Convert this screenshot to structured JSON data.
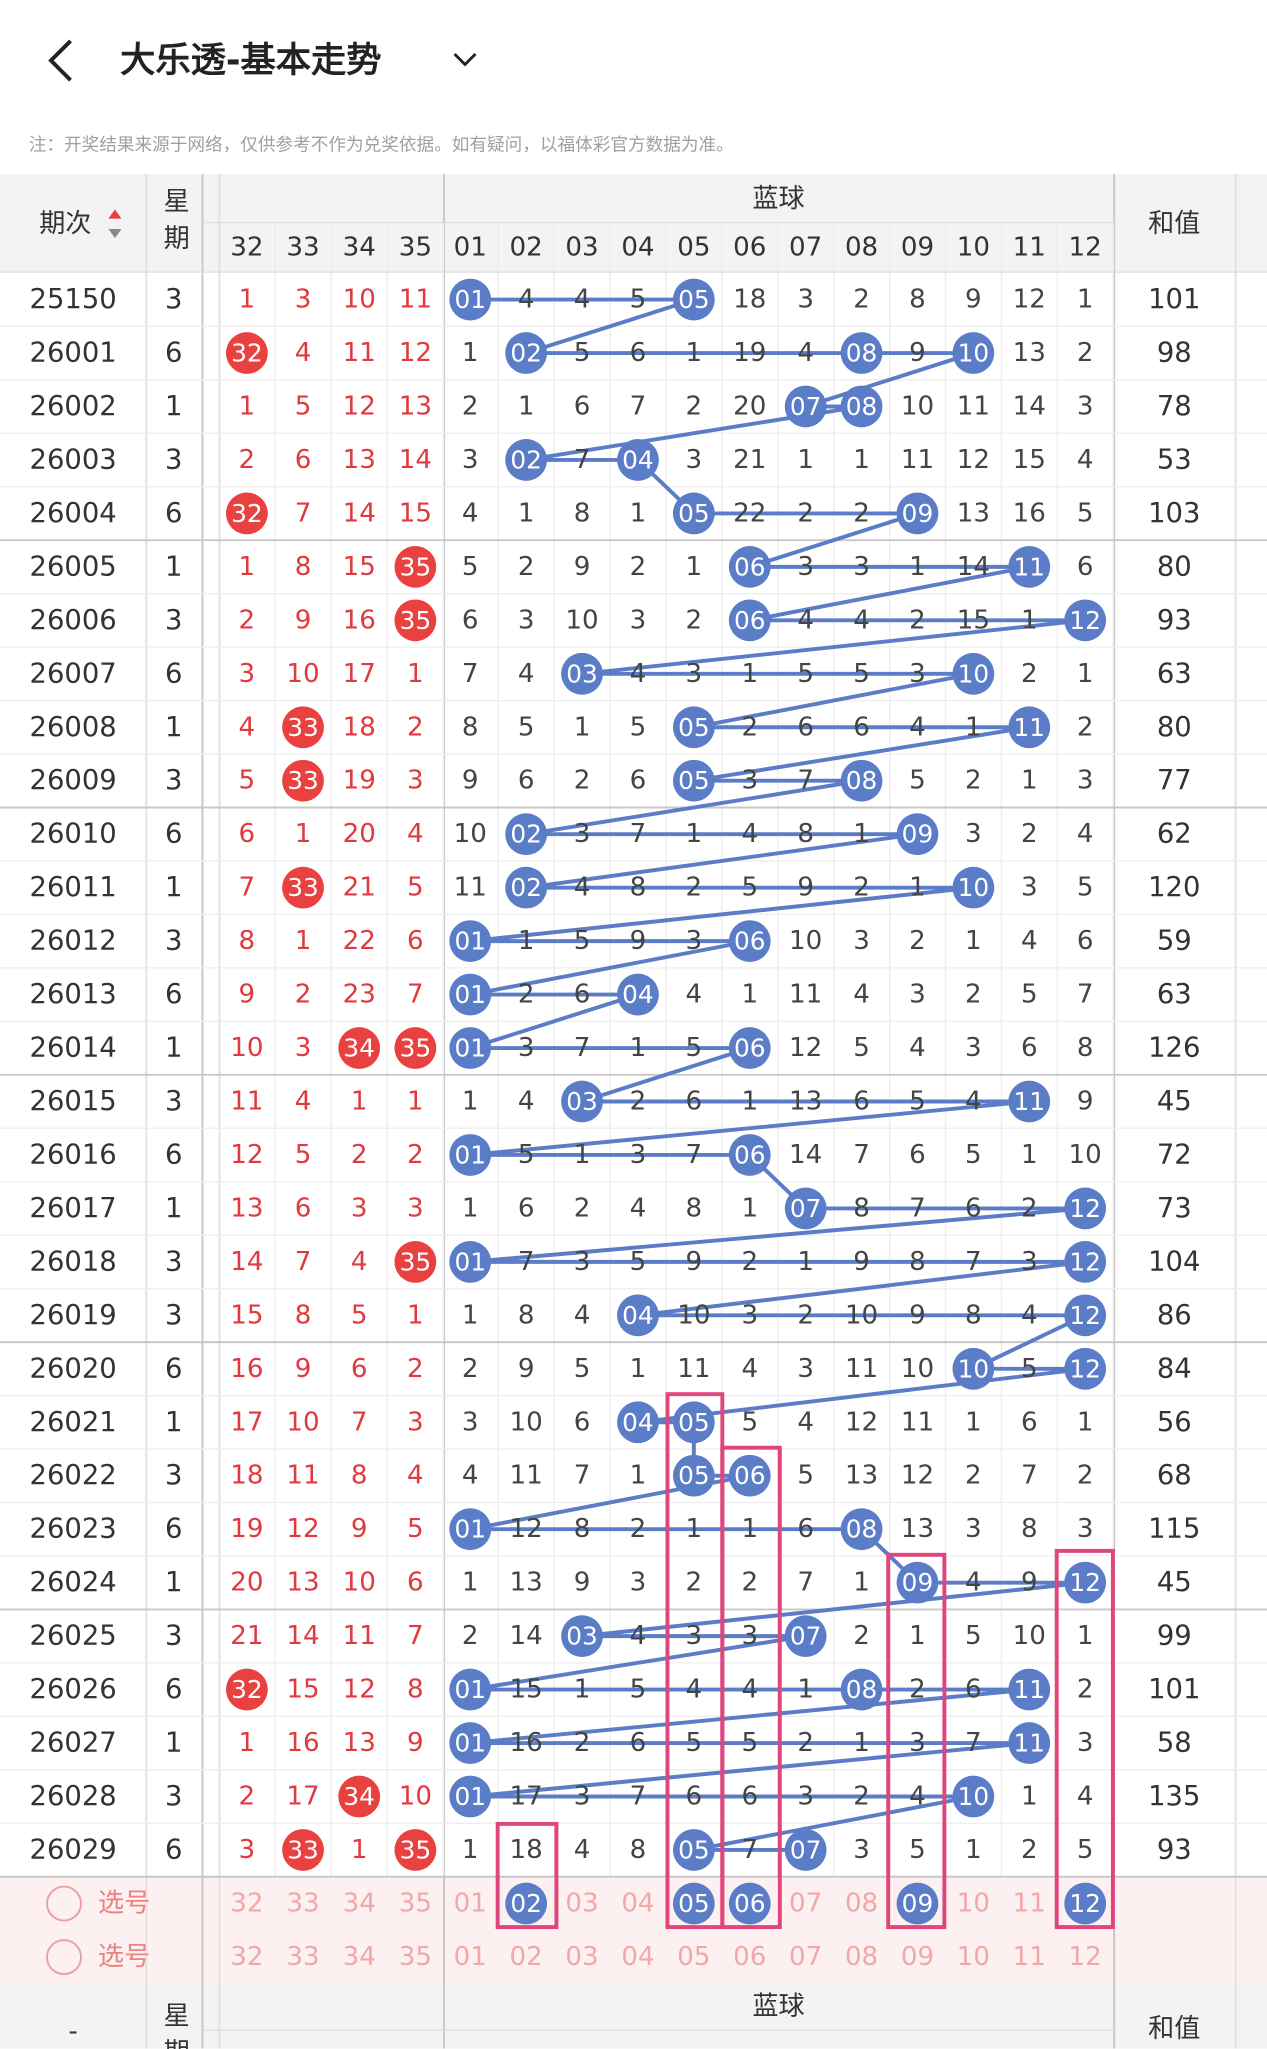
{
  "header": {
    "title": "大乐透-基本走势"
  },
  "notice": "注：开奖结果来源于网络，仅供参考不作为兑奖依据。如有疑问，以福体彩官方数据为准。",
  "table": {
    "col_period": "期次",
    "col_week": "星期",
    "blue_group": "蓝球",
    "col_sum": "和值",
    "red_columns": [
      "32",
      "33",
      "34",
      "35"
    ],
    "blue_columns": [
      "01",
      "02",
      "03",
      "04",
      "05",
      "06",
      "07",
      "08",
      "09",
      "10",
      "11",
      "12"
    ],
    "rows": [
      {
        "period": "25150",
        "week": "3",
        "red": [
          "1",
          "3",
          "10",
          "11"
        ],
        "blue": [
          "01",
          "4",
          "4",
          "5",
          "05",
          "18",
          "3",
          "2",
          "8",
          "9",
          "12",
          "1"
        ],
        "sum": "101"
      },
      {
        "period": "26001",
        "week": "6",
        "red": [
          "32",
          "4",
          "11",
          "12"
        ],
        "blue": [
          "1",
          "02",
          "5",
          "6",
          "1",
          "19",
          "4",
          "08",
          "9",
          "10",
          "13",
          "2"
        ],
        "sum": "98"
      },
      {
        "period": "26002",
        "week": "1",
        "red": [
          "1",
          "5",
          "12",
          "13"
        ],
        "blue": [
          "2",
          "1",
          "6",
          "7",
          "2",
          "20",
          "07",
          "08",
          "10",
          "11",
          "14",
          "3"
        ],
        "sum": "78"
      },
      {
        "period": "26003",
        "week": "3",
        "red": [
          "2",
          "6",
          "13",
          "14"
        ],
        "blue": [
          "3",
          "02",
          "7",
          "04",
          "3",
          "21",
          "1",
          "1",
          "11",
          "12",
          "15",
          "4"
        ],
        "sum": "53"
      },
      {
        "period": "26004",
        "week": "6",
        "red": [
          "32",
          "7",
          "14",
          "15"
        ],
        "blue": [
          "4",
          "1",
          "8",
          "1",
          "05",
          "22",
          "2",
          "2",
          "09",
          "13",
          "16",
          "5"
        ],
        "sum": "103"
      },
      {
        "period": "26005",
        "week": "1",
        "red": [
          "1",
          "8",
          "15",
          "35"
        ],
        "blue": [
          "5",
          "2",
          "9",
          "2",
          "1",
          "06",
          "3",
          "3",
          "1",
          "14",
          "11",
          "6"
        ],
        "sum": "80"
      },
      {
        "period": "26006",
        "week": "3",
        "red": [
          "2",
          "9",
          "16",
          "35"
        ],
        "blue": [
          "6",
          "3",
          "10",
          "3",
          "2",
          "06",
          "4",
          "4",
          "2",
          "15",
          "1",
          "12"
        ],
        "sum": "93"
      },
      {
        "period": "26007",
        "week": "6",
        "red": [
          "3",
          "10",
          "17",
          "1"
        ],
        "blue": [
          "7",
          "4",
          "03",
          "4",
          "3",
          "1",
          "5",
          "5",
          "3",
          "10",
          "2",
          "1"
        ],
        "sum": "63"
      },
      {
        "period": "26008",
        "week": "1",
        "red": [
          "4",
          "33",
          "18",
          "2"
        ],
        "blue": [
          "8",
          "5",
          "1",
          "5",
          "05",
          "2",
          "6",
          "6",
          "4",
          "1",
          "11",
          "2"
        ],
        "sum": "80"
      },
      {
        "period": "26009",
        "week": "3",
        "red": [
          "5",
          "33",
          "19",
          "3"
        ],
        "blue": [
          "9",
          "6",
          "2",
          "6",
          "05",
          "3",
          "7",
          "08",
          "5",
          "2",
          "1",
          "3"
        ],
        "sum": "77"
      },
      {
        "period": "26010",
        "week": "6",
        "red": [
          "6",
          "1",
          "20",
          "4"
        ],
        "blue": [
          "10",
          "02",
          "3",
          "7",
          "1",
          "4",
          "8",
          "1",
          "09",
          "3",
          "2",
          "4"
        ],
        "sum": "62"
      },
      {
        "period": "26011",
        "week": "1",
        "red": [
          "7",
          "33",
          "21",
          "5"
        ],
        "blue": [
          "11",
          "02",
          "4",
          "8",
          "2",
          "5",
          "9",
          "2",
          "1",
          "10",
          "3",
          "5"
        ],
        "sum": "120"
      },
      {
        "period": "26012",
        "week": "3",
        "red": [
          "8",
          "1",
          "22",
          "6"
        ],
        "blue": [
          "01",
          "1",
          "5",
          "9",
          "3",
          "06",
          "10",
          "3",
          "2",
          "1",
          "4",
          "6"
        ],
        "sum": "59"
      },
      {
        "period": "26013",
        "week": "6",
        "red": [
          "9",
          "2",
          "23",
          "7"
        ],
        "blue": [
          "01",
          "2",
          "6",
          "04",
          "4",
          "1",
          "11",
          "4",
          "3",
          "2",
          "5",
          "7"
        ],
        "sum": "63"
      },
      {
        "period": "26014",
        "week": "1",
        "red": [
          "10",
          "3",
          "34",
          "35"
        ],
        "blue": [
          "01",
          "3",
          "7",
          "1",
          "5",
          "06",
          "12",
          "5",
          "4",
          "3",
          "6",
          "8"
        ],
        "sum": "126"
      },
      {
        "period": "26015",
        "week": "3",
        "red": [
          "11",
          "4",
          "1",
          "1"
        ],
        "blue": [
          "1",
          "4",
          "03",
          "2",
          "6",
          "1",
          "13",
          "6",
          "5",
          "4",
          "11",
          "9"
        ],
        "sum": "45"
      },
      {
        "period": "26016",
        "week": "6",
        "red": [
          "12",
          "5",
          "2",
          "2"
        ],
        "blue": [
          "01",
          "5",
          "1",
          "3",
          "7",
          "06",
          "14",
          "7",
          "6",
          "5",
          "1",
          "10"
        ],
        "sum": "72"
      },
      {
        "period": "26017",
        "week": "1",
        "red": [
          "13",
          "6",
          "3",
          "3"
        ],
        "blue": [
          "1",
          "6",
          "2",
          "4",
          "8",
          "1",
          "07",
          "8",
          "7",
          "6",
          "2",
          "12"
        ],
        "sum": "73"
      },
      {
        "period": "26018",
        "week": "3",
        "red": [
          "14",
          "7",
          "4",
          "35"
        ],
        "blue": [
          "01",
          "7",
          "3",
          "5",
          "9",
          "2",
          "1",
          "9",
          "8",
          "7",
          "3",
          "12"
        ],
        "sum": "104"
      },
      {
        "period": "26019",
        "week": "3",
        "red": [
          "15",
          "8",
          "5",
          "1"
        ],
        "blue": [
          "1",
          "8",
          "4",
          "04",
          "10",
          "3",
          "2",
          "10",
          "9",
          "8",
          "4",
          "12"
        ],
        "sum": "86"
      },
      {
        "period": "26020",
        "week": "6",
        "red": [
          "16",
          "9",
          "6",
          "2"
        ],
        "blue": [
          "2",
          "9",
          "5",
          "1",
          "11",
          "4",
          "3",
          "11",
          "10",
          "10",
          "5",
          "12"
        ],
        "sum": "84"
      },
      {
        "period": "26021",
        "week": "1",
        "red": [
          "17",
          "10",
          "7",
          "3"
        ],
        "blue": [
          "3",
          "10",
          "6",
          "04",
          "05",
          "5",
          "4",
          "12",
          "11",
          "1",
          "6",
          "1"
        ],
        "sum": "56"
      },
      {
        "period": "26022",
        "week": "3",
        "red": [
          "18",
          "11",
          "8",
          "4"
        ],
        "blue": [
          "4",
          "11",
          "7",
          "1",
          "05",
          "06",
          "5",
          "13",
          "12",
          "2",
          "7",
          "2"
        ],
        "sum": "68"
      },
      {
        "period": "26023",
        "week": "6",
        "red": [
          "19",
          "12",
          "9",
          "5"
        ],
        "blue": [
          "01",
          "12",
          "8",
          "2",
          "1",
          "1",
          "6",
          "08",
          "13",
          "3",
          "8",
          "3"
        ],
        "sum": "115"
      },
      {
        "period": "26024",
        "week": "1",
        "red": [
          "20",
          "13",
          "10",
          "6"
        ],
        "blue": [
          "1",
          "13",
          "9",
          "3",
          "2",
          "2",
          "7",
          "1",
          "09",
          "4",
          "9",
          "12"
        ],
        "sum": "45"
      },
      {
        "period": "26025",
        "week": "3",
        "red": [
          "21",
          "14",
          "11",
          "7"
        ],
        "blue": [
          "2",
          "14",
          "03",
          "4",
          "3",
          "3",
          "07",
          "2",
          "1",
          "5",
          "10",
          "1"
        ],
        "sum": "99"
      },
      {
        "period": "26026",
        "week": "6",
        "red": [
          "32",
          "15",
          "12",
          "8"
        ],
        "blue": [
          "01",
          "15",
          "1",
          "5",
          "4",
          "4",
          "1",
          "08",
          "2",
          "6",
          "11",
          "2"
        ],
        "sum": "101"
      },
      {
        "period": "26027",
        "week": "1",
        "red": [
          "1",
          "16",
          "13",
          "9"
        ],
        "blue": [
          "01",
          "16",
          "2",
          "6",
          "5",
          "5",
          "2",
          "1",
          "3",
          "7",
          "11",
          "3"
        ],
        "sum": "58"
      },
      {
        "period": "26028",
        "week": "3",
        "red": [
          "2",
          "17",
          "34",
          "10"
        ],
        "blue": [
          "01",
          "17",
          "3",
          "7",
          "6",
          "6",
          "3",
          "2",
          "4",
          "10",
          "1",
          "4"
        ],
        "sum": "135"
      },
      {
        "period": "26029",
        "week": "6",
        "red": [
          "3",
          "33",
          "1",
          "35"
        ],
        "blue": [
          "1",
          "18",
          "4",
          "8",
          "05",
          "7",
          "07",
          "3",
          "5",
          "1",
          "2",
          "5"
        ],
        "sum": "93"
      }
    ]
  },
  "selector": {
    "rows": [
      {
        "label": "选号",
        "selected": [
          "02",
          "05",
          "06",
          "09",
          "12"
        ]
      },
      {
        "label": "选号"
      }
    ]
  },
  "footer_header": {
    "period": "-",
    "week": "星期",
    "blue_group": "蓝球",
    "sum": "和值"
  }
}
